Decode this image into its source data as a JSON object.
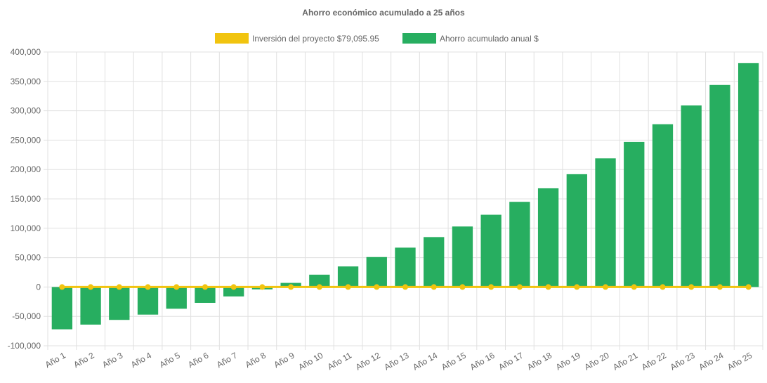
{
  "chart_data": {
    "type": "bar",
    "title": "Ahorro económico acumulado a 25 años",
    "legend_position": "top",
    "categories": [
      "Año 1",
      "Año 2",
      "Año 3",
      "Año 4",
      "Año 5",
      "Año 6",
      "Año 7",
      "Año 8",
      "Año 9",
      "Año 10",
      "Año 11",
      "Año 12",
      "Año 13",
      "Año 14",
      "Año 15",
      "Año 16",
      "Año 17",
      "Año 18",
      "Año 19",
      "Año 20",
      "Año 21",
      "Año 22",
      "Año 23",
      "Año 24",
      "Año 25"
    ],
    "series": [
      {
        "name": "Inversión del proyecto $79,095.95",
        "type": "line",
        "color": "#f1c40f",
        "values": [
          0,
          0,
          0,
          0,
          0,
          0,
          0,
          0,
          0,
          0,
          0,
          0,
          0,
          0,
          0,
          0,
          0,
          0,
          0,
          0,
          0,
          0,
          0,
          0,
          0
        ]
      },
      {
        "name": "Ahorro acumulado anual $",
        "type": "bar",
        "color": "#27ae60",
        "values": [
          -72000,
          -64000,
          -56000,
          -47000,
          -37000,
          -27000,
          -16000,
          -4000,
          7000,
          21000,
          35000,
          51000,
          67000,
          85000,
          103000,
          123000,
          145000,
          168000,
          192000,
          219000,
          247000,
          277000,
          309000,
          344000,
          381000
        ]
      }
    ],
    "ylim": [
      -100000,
      400000
    ],
    "yticks": [
      "400,000",
      "350,000",
      "300,000",
      "250,000",
      "200,000",
      "150,000",
      "100,000",
      "50,000",
      "0",
      "-50,000",
      "-100,000"
    ],
    "grid": true
  }
}
